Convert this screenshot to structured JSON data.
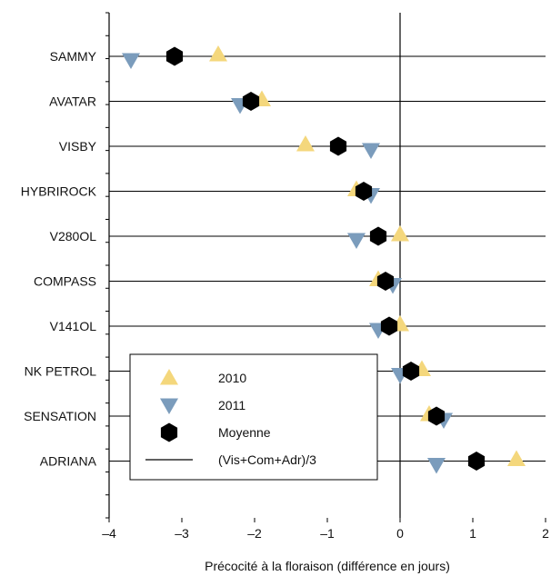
{
  "chart_data": {
    "type": "scatter",
    "xlabel": "Précocité à la floraison (différence en jours)",
    "xlim": [
      -4,
      2
    ],
    "xticks": [
      -4,
      -3,
      -2,
      -1,
      0,
      1,
      2
    ],
    "xtick_labels": [
      "–4",
      "–3",
      "–2",
      "–1",
      "0",
      "1",
      "2"
    ],
    "categories": [
      "SAMMY",
      "AVATAR",
      "VISBY",
      "HYBRIROCK",
      "V280OL",
      "COMPASS",
      "V141OL",
      "NK PETROL",
      "SENSATION",
      "ADRIANA"
    ],
    "grid": "horizontal lines per category",
    "reference_line": {
      "x": 0,
      "label": "(Vis+Com+Adr)/3"
    },
    "legend_position": "bottom-left",
    "series": [
      {
        "name": "2010",
        "marker": "triangle-up",
        "color": "#f4d77c",
        "values": [
          -2.5,
          -1.9,
          -1.3,
          -0.6,
          0.0,
          -0.3,
          0.0,
          0.3,
          0.4,
          1.6
        ]
      },
      {
        "name": "2011",
        "marker": "triangle-down",
        "color": "#7b9cbc",
        "values": [
          -3.7,
          -2.2,
          -0.4,
          -0.4,
          -0.6,
          -0.1,
          -0.3,
          0.0,
          0.6,
          0.5
        ]
      },
      {
        "name": "Moyenne",
        "marker": "hexagon",
        "color": "#000000",
        "values": [
          -3.1,
          -2.05,
          -0.85,
          -0.5,
          -0.3,
          -0.2,
          -0.15,
          0.15,
          0.5,
          1.05
        ]
      }
    ]
  }
}
